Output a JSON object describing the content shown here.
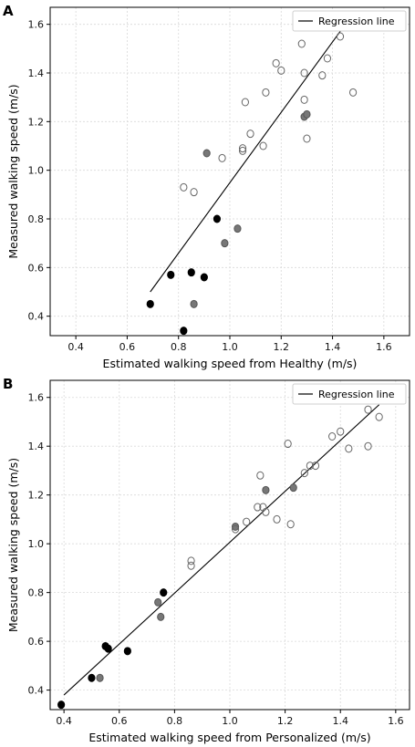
{
  "chart_data": [
    {
      "panel": "A",
      "type": "scatter",
      "title": "",
      "xlabel": "Estimated walking speed from Healthy (m/s)",
      "ylabel": "Measured walking speed (m/s)",
      "xlim": [
        0.3,
        1.7
      ],
      "ylim": [
        0.32,
        1.67
      ],
      "xticks": [
        "0.4",
        "0.6",
        "0.8",
        "1.0",
        "1.2",
        "1.4",
        "1.6"
      ],
      "yticks": [
        "0.4",
        "0.6",
        "0.8",
        "1.0",
        "1.2",
        "1.4",
        "1.6"
      ],
      "grid": true,
      "legend": {
        "label": "Regression line",
        "placement": "top-right"
      },
      "regression_line": {
        "x": [
          0.69,
          1.45
        ],
        "y": [
          0.5,
          1.6
        ]
      },
      "series": [
        {
          "group": "black",
          "color": "#000000",
          "fill": "#000000",
          "points": [
            [
              0.69,
              0.45
            ],
            [
              0.77,
              0.57
            ],
            [
              0.82,
              0.34
            ],
            [
              0.85,
              0.58
            ],
            [
              0.9,
              0.56
            ],
            [
              0.95,
              0.8
            ]
          ]
        },
        {
          "group": "gray",
          "color": "#555555",
          "fill": "#777777",
          "points": [
            [
              0.86,
              0.45
            ],
            [
              0.91,
              1.07
            ],
            [
              0.98,
              0.7
            ],
            [
              1.03,
              0.76
            ],
            [
              1.29,
              1.22
            ],
            [
              1.3,
              1.23
            ]
          ]
        },
        {
          "group": "open",
          "color": "#666666",
          "fill": "none",
          "points": [
            [
              0.82,
              0.93
            ],
            [
              0.86,
              0.91
            ],
            [
              0.97,
              1.05
            ],
            [
              1.05,
              1.09
            ],
            [
              1.05,
              1.08
            ],
            [
              1.06,
              1.28
            ],
            [
              1.08,
              1.15
            ],
            [
              1.13,
              1.1
            ],
            [
              1.14,
              1.32
            ],
            [
              1.18,
              1.44
            ],
            [
              1.2,
              1.41
            ],
            [
              1.28,
              1.52
            ],
            [
              1.29,
              1.4
            ],
            [
              1.29,
              1.29
            ],
            [
              1.3,
              1.13
            ],
            [
              1.36,
              1.39
            ],
            [
              1.38,
              1.46
            ],
            [
              1.43,
              1.55
            ],
            [
              1.48,
              1.32
            ]
          ]
        }
      ]
    },
    {
      "panel": "B",
      "type": "scatter",
      "title": "",
      "xlabel": "Estimated walking speed from Personalized (m/s)",
      "ylabel": "Measured walking speed (m/s)",
      "xlim": [
        0.35,
        1.65
      ],
      "ylim": [
        0.32,
        1.67
      ],
      "xticks": [
        "0.4",
        "0.6",
        "0.8",
        "1.0",
        "1.2",
        "1.4",
        "1.6"
      ],
      "yticks": [
        "0.4",
        "0.6",
        "0.8",
        "1.0",
        "1.2",
        "1.4",
        "1.6"
      ],
      "grid": true,
      "legend": {
        "label": "Regression line",
        "placement": "top-right"
      },
      "regression_line": {
        "x": [
          0.4,
          1.54
        ],
        "y": [
          0.38,
          1.57
        ]
      },
      "series": [
        {
          "group": "black",
          "color": "#000000",
          "fill": "#000000",
          "points": [
            [
              0.39,
              0.34
            ],
            [
              0.5,
              0.45
            ],
            [
              0.55,
              0.58
            ],
            [
              0.56,
              0.57
            ],
            [
              0.63,
              0.56
            ],
            [
              0.76,
              0.8
            ]
          ]
        },
        {
          "group": "gray",
          "color": "#555555",
          "fill": "#777777",
          "points": [
            [
              0.53,
              0.45
            ],
            [
              0.74,
              0.76
            ],
            [
              0.75,
              0.7
            ],
            [
              1.02,
              1.07
            ],
            [
              1.13,
              1.22
            ],
            [
              1.23,
              1.23
            ]
          ]
        },
        {
          "group": "open",
          "color": "#666666",
          "fill": "none",
          "points": [
            [
              0.86,
              0.93
            ],
            [
              0.86,
              0.91
            ],
            [
              1.02,
              1.06
            ],
            [
              1.06,
              1.09
            ],
            [
              1.1,
              1.15
            ],
            [
              1.11,
              1.28
            ],
            [
              1.12,
              1.15
            ],
            [
              1.13,
              1.13
            ],
            [
              1.17,
              1.1
            ],
            [
              1.21,
              1.41
            ],
            [
              1.22,
              1.08
            ],
            [
              1.27,
              1.29
            ],
            [
              1.29,
              1.32
            ],
            [
              1.31,
              1.32
            ],
            [
              1.37,
              1.44
            ],
            [
              1.4,
              1.46
            ],
            [
              1.43,
              1.39
            ],
            [
              1.5,
              1.55
            ],
            [
              1.5,
              1.4
            ],
            [
              1.54,
              1.52
            ]
          ]
        }
      ]
    }
  ]
}
